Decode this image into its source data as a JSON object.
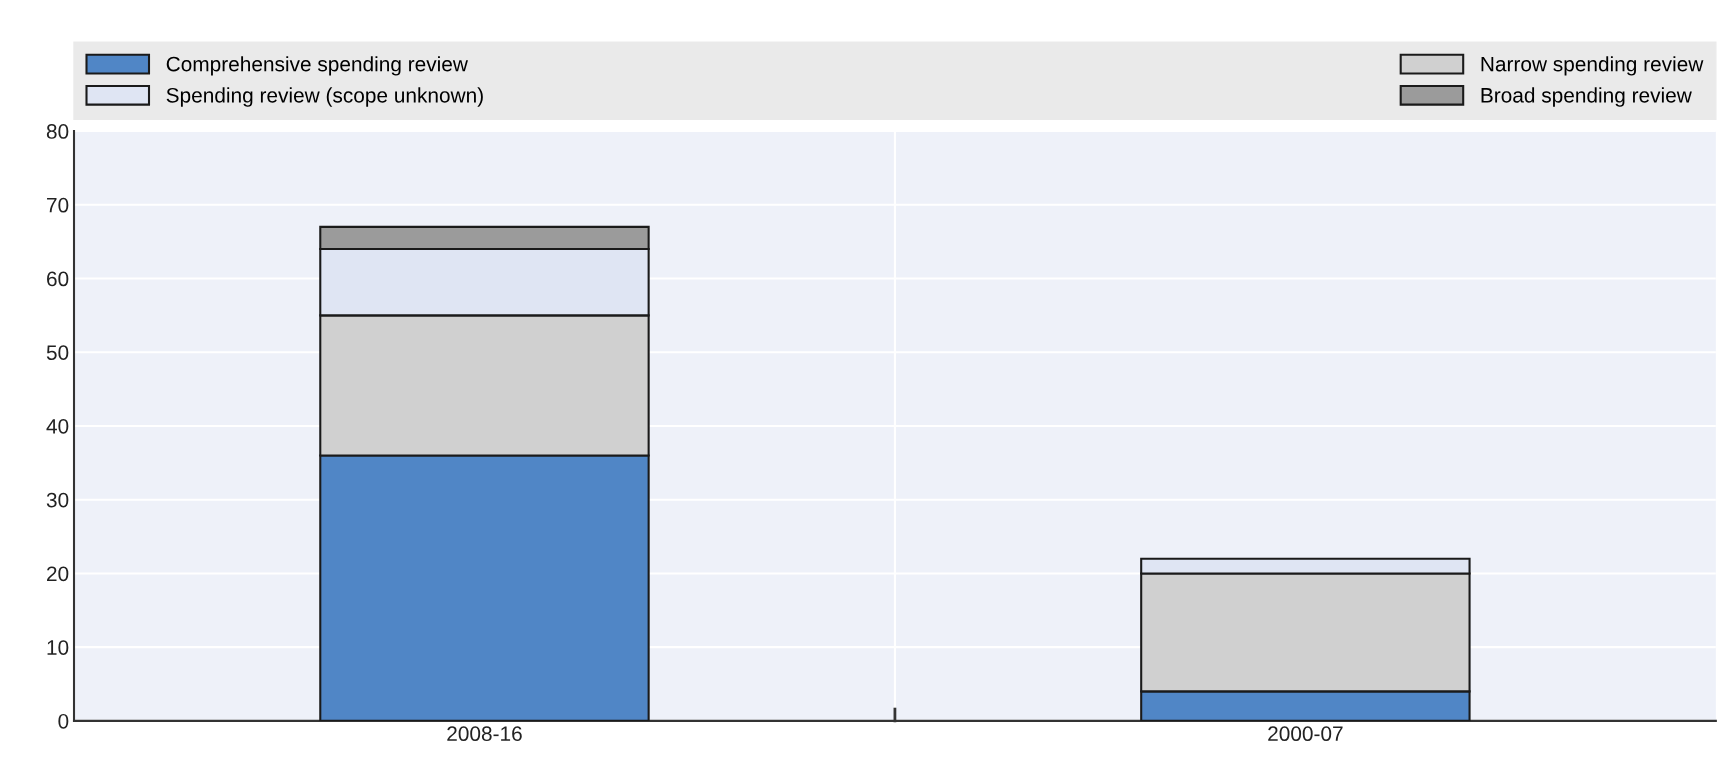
{
  "chart_data": {
    "type": "bar",
    "stacked": true,
    "categories": [
      "2008-16",
      "2000-07"
    ],
    "series": [
      {
        "name": "Comprehensive spending review",
        "color": "#5086c6",
        "values": [
          36,
          4
        ]
      },
      {
        "name": "Narrow spending review",
        "color": "#d0d0d0",
        "values": [
          19,
          16
        ]
      },
      {
        "name": "Spending review (scope unknown)",
        "color": "#dfe5f3",
        "values": [
          9,
          2
        ]
      },
      {
        "name": "Broad spending review",
        "color": "#9b9b9b",
        "values": [
          3,
          null
        ]
      }
    ],
    "ylim": [
      0,
      80
    ],
    "yticks": [
      0,
      10,
      20,
      30,
      40,
      50,
      60,
      70,
      80
    ],
    "grid": true,
    "legend": "top"
  }
}
